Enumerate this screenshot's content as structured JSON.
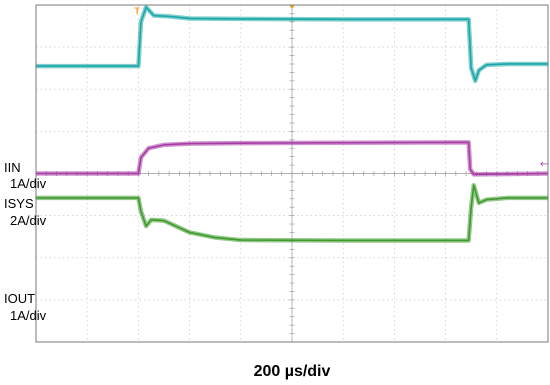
{
  "chart_data": {
    "type": "line",
    "title": "",
    "xlabel": "200 µs/div",
    "divisions": {
      "x": 10,
      "y": 8
    },
    "x_range_div": [
      0,
      10
    ],
    "y_range_div": [
      0,
      8
    ],
    "grid": true,
    "annotations": [
      {
        "id": "iin",
        "lines": [
          "IIN",
          "1A/div"
        ]
      },
      {
        "id": "isys",
        "lines": [
          "ISYS",
          "2A/div"
        ]
      },
      {
        "id": "iout",
        "lines": [
          "IOUT",
          "1A/div"
        ]
      }
    ],
    "series": [
      {
        "color": "#1aa7a8",
        "x": [
          0,
          2.0,
          2.05,
          2.15,
          2.3,
          2.6,
          3.0,
          4.0,
          6.0,
          8.0,
          8.45,
          8.5,
          8.58,
          8.65,
          8.8,
          9.2,
          10
        ],
        "y": [
          6.55,
          6.55,
          7.6,
          7.95,
          7.75,
          7.73,
          7.68,
          7.67,
          7.66,
          7.66,
          7.66,
          6.5,
          6.2,
          6.45,
          6.58,
          6.6,
          6.6
        ]
      },
      {
        "color": "#a83ca6",
        "x": [
          0,
          2.0,
          2.05,
          2.2,
          2.5,
          3.0,
          4.0,
          6.0,
          8.45,
          8.48,
          8.55,
          10
        ],
        "y": [
          4.0,
          4.0,
          4.38,
          4.6,
          4.68,
          4.71,
          4.72,
          4.73,
          4.74,
          4.1,
          3.98,
          4.0
        ]
      },
      {
        "color": "#3f9a2e",
        "x": [
          0,
          2.0,
          2.05,
          2.15,
          2.25,
          2.5,
          3.0,
          3.5,
          4.0,
          6.0,
          8.45,
          8.5,
          8.55,
          8.65,
          8.8,
          9.2,
          10
        ],
        "y": [
          3.42,
          3.42,
          3.1,
          2.75,
          2.9,
          2.88,
          2.6,
          2.48,
          2.42,
          2.41,
          2.41,
          3.2,
          3.72,
          3.3,
          3.38,
          3.42,
          3.42
        ]
      }
    ],
    "markers": {
      "trigger_color": "#f0a020",
      "trigger_label": "T",
      "ref_color": "#a83ca6",
      "ref_glyph": "←"
    }
  }
}
